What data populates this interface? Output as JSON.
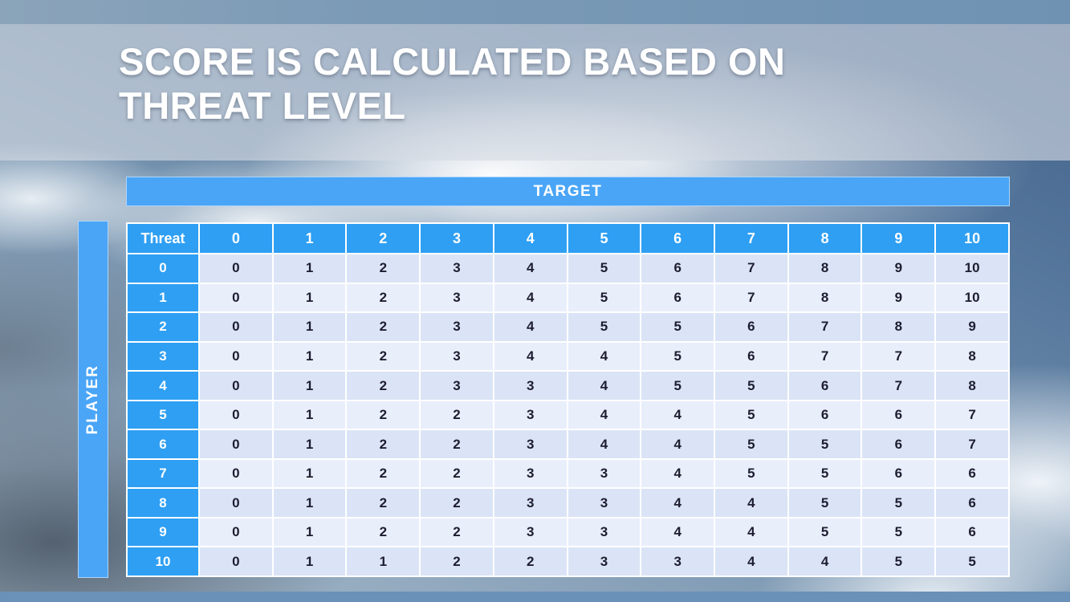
{
  "title": "SCORE IS CALCULATED BASED ON THREAT LEVEL",
  "table": {
    "target_label": "TARGET",
    "player_label": "PLAYER",
    "corner_label": "Threat",
    "col_headers": [
      "0",
      "1",
      "2",
      "3",
      "4",
      "5",
      "6",
      "7",
      "8",
      "9",
      "10"
    ],
    "rows": [
      {
        "header": "0",
        "cells": [
          "0",
          "1",
          "2",
          "3",
          "4",
          "5",
          "6",
          "7",
          "8",
          "9",
          "10"
        ]
      },
      {
        "header": "1",
        "cells": [
          "0",
          "1",
          "2",
          "3",
          "4",
          "5",
          "6",
          "7",
          "8",
          "9",
          "10"
        ]
      },
      {
        "header": "2",
        "cells": [
          "0",
          "1",
          "2",
          "3",
          "4",
          "5",
          "5",
          "6",
          "7",
          "8",
          "9"
        ]
      },
      {
        "header": "3",
        "cells": [
          "0",
          "1",
          "2",
          "3",
          "4",
          "4",
          "5",
          "6",
          "7",
          "7",
          "8"
        ]
      },
      {
        "header": "4",
        "cells": [
          "0",
          "1",
          "2",
          "3",
          "3",
          "4",
          "5",
          "5",
          "6",
          "7",
          "8"
        ]
      },
      {
        "header": "5",
        "cells": [
          "0",
          "1",
          "2",
          "2",
          "3",
          "4",
          "4",
          "5",
          "6",
          "6",
          "7"
        ]
      },
      {
        "header": "6",
        "cells": [
          "0",
          "1",
          "2",
          "2",
          "3",
          "4",
          "4",
          "5",
          "5",
          "6",
          "7"
        ]
      },
      {
        "header": "7",
        "cells": [
          "0",
          "1",
          "2",
          "2",
          "3",
          "3",
          "4",
          "5",
          "5",
          "6",
          "6"
        ]
      },
      {
        "header": "8",
        "cells": [
          "0",
          "1",
          "2",
          "2",
          "3",
          "3",
          "4",
          "4",
          "5",
          "5",
          "6"
        ]
      },
      {
        "header": "9",
        "cells": [
          "0",
          "1",
          "2",
          "2",
          "3",
          "3",
          "4",
          "4",
          "5",
          "5",
          "6"
        ]
      },
      {
        "header": "10",
        "cells": [
          "0",
          "1",
          "1",
          "2",
          "2",
          "3",
          "3",
          "4",
          "4",
          "5",
          "5"
        ]
      }
    ]
  },
  "colors": {
    "header_blue": "#2e9ff3",
    "band_blue": "#4aa5f6",
    "row_light": "#e9eefb",
    "row_dark": "#dbe4f6",
    "top_strip": "#7b9ab6",
    "title_text": "#ffffff",
    "cell_text": "#1d1d30"
  }
}
